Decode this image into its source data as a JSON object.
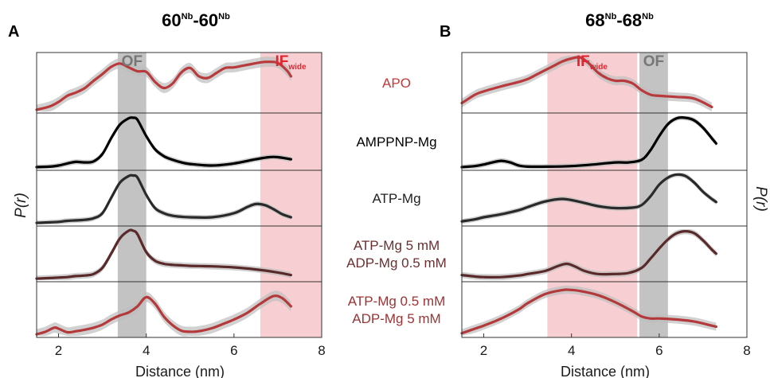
{
  "figure": {
    "ylabel_left": "P(r)",
    "ylabel_right": "P(r)",
    "row_labels": [
      {
        "lines": [
          "APO"
        ],
        "color": "#c0393b"
      },
      {
        "lines": [
          "AMPPNP-Mg"
        ],
        "color": "#000000"
      },
      {
        "lines": [
          "ATP-Mg"
        ],
        "color": "#222222"
      },
      {
        "lines": [
          "ATP-Mg 5 mM",
          "ADP-Mg 0.5 mM"
        ],
        "color": "#6b2f2f"
      },
      {
        "lines": [
          "ATP-Mg 0.5 mM",
          "ADP-Mg 5 mM"
        ],
        "color": "#9c3335"
      }
    ]
  },
  "chart_data": [
    {
      "panel": "A",
      "title_base1": "60",
      "title_sup1": "Nb",
      "title_sep": "-",
      "title_base2": "60",
      "title_sup2": "Nb",
      "type": "line",
      "xlabel": "Distance (nm)",
      "xlim": [
        1.5,
        8
      ],
      "xticks": [
        2,
        4,
        6,
        8
      ],
      "grid": false,
      "regions": [
        {
          "label": "OF",
          "sub": "",
          "x": [
            3.35,
            4.0
          ],
          "color": "#b9b9b9",
          "text_color": "#777777"
        },
        {
          "label": "IF",
          "sub": "wide",
          "x": [
            6.6,
            8.0
          ],
          "color": "#f6c7ca",
          "text_color": "#e0262f"
        }
      ],
      "series": [
        {
          "row": 0,
          "color": "#b83a3c",
          "band": 0.09,
          "x": [
            1.5,
            1.8,
            2.0,
            2.2,
            2.4,
            2.6,
            2.8,
            3.0,
            3.2,
            3.4,
            3.6,
            3.8,
            4.0,
            4.2,
            4.4,
            4.6,
            4.8,
            5.0,
            5.2,
            5.4,
            5.6,
            5.8,
            6.0,
            6.2,
            6.4,
            6.6,
            6.8,
            7.0,
            7.2,
            7.3
          ],
          "y": [
            0.03,
            0.09,
            0.17,
            0.28,
            0.34,
            0.42,
            0.55,
            0.67,
            0.8,
            0.86,
            0.79,
            0.72,
            0.71,
            0.53,
            0.42,
            0.5,
            0.7,
            0.78,
            0.63,
            0.6,
            0.69,
            0.78,
            0.79,
            0.82,
            0.85,
            0.88,
            0.89,
            0.87,
            0.74,
            0.63
          ]
        },
        {
          "row": 1,
          "color": "#000000",
          "band": 0.05,
          "x": [
            1.5,
            1.8,
            2.0,
            2.2,
            2.4,
            2.6,
            2.8,
            3.0,
            3.2,
            3.4,
            3.6,
            3.7,
            3.8,
            4.0,
            4.2,
            4.4,
            4.6,
            4.8,
            5.0,
            5.5,
            6.0,
            6.5,
            6.8,
            7.0,
            7.3
          ],
          "y": [
            0.03,
            0.04,
            0.06,
            0.1,
            0.13,
            0.12,
            0.14,
            0.28,
            0.58,
            0.84,
            0.96,
            0.97,
            0.93,
            0.62,
            0.37,
            0.24,
            0.17,
            0.12,
            0.09,
            0.06,
            0.1,
            0.18,
            0.22,
            0.22,
            0.18
          ]
        },
        {
          "row": 2,
          "color": "#2a2a2a",
          "band": 0.05,
          "x": [
            1.5,
            1.8,
            2.0,
            2.2,
            2.4,
            2.6,
            2.8,
            3.0,
            3.2,
            3.4,
            3.6,
            3.7,
            3.8,
            4.0,
            4.2,
            4.4,
            4.6,
            4.8,
            5.0,
            5.5,
            6.0,
            6.3,
            6.5,
            6.7,
            6.9,
            7.1,
            7.3
          ],
          "y": [
            0.03,
            0.04,
            0.05,
            0.07,
            0.08,
            0.09,
            0.12,
            0.22,
            0.52,
            0.82,
            0.95,
            0.96,
            0.92,
            0.58,
            0.32,
            0.22,
            0.17,
            0.15,
            0.14,
            0.14,
            0.22,
            0.34,
            0.4,
            0.38,
            0.3,
            0.2,
            0.14
          ]
        },
        {
          "row": 3,
          "color": "#5a2a2a",
          "band": 0.06,
          "x": [
            1.5,
            1.8,
            2.0,
            2.2,
            2.4,
            2.6,
            2.8,
            3.0,
            3.2,
            3.4,
            3.6,
            3.7,
            3.8,
            4.0,
            4.2,
            4.4,
            4.6,
            4.8,
            5.0,
            5.5,
            6.0,
            6.5,
            7.0,
            7.3
          ],
          "y": [
            0.03,
            0.04,
            0.05,
            0.06,
            0.08,
            0.09,
            0.12,
            0.24,
            0.52,
            0.82,
            0.97,
            0.97,
            0.9,
            0.55,
            0.38,
            0.32,
            0.3,
            0.29,
            0.28,
            0.27,
            0.25,
            0.21,
            0.15,
            0.1
          ]
        },
        {
          "row": 4,
          "color": "#b3393b",
          "band": 0.1,
          "x": [
            1.5,
            1.7,
            1.9,
            2.0,
            2.2,
            2.4,
            2.6,
            2.8,
            3.0,
            3.2,
            3.4,
            3.6,
            3.8,
            4.0,
            4.2,
            4.4,
            4.6,
            4.8,
            5.0,
            5.2,
            5.5,
            5.8,
            6.0,
            6.3,
            6.6,
            6.9,
            7.1,
            7.3
          ],
          "y": [
            0.03,
            0.08,
            0.16,
            0.14,
            0.07,
            0.09,
            0.12,
            0.16,
            0.22,
            0.32,
            0.4,
            0.46,
            0.58,
            0.76,
            0.63,
            0.38,
            0.21,
            0.1,
            0.08,
            0.09,
            0.15,
            0.25,
            0.32,
            0.45,
            0.63,
            0.78,
            0.74,
            0.58
          ]
        }
      ]
    },
    {
      "panel": "B",
      "title_base1": "68",
      "title_sup1": "Nb",
      "title_sep": "-",
      "title_base2": "68",
      "title_sup2": "Nb",
      "type": "line",
      "xlabel": "Distance (nm)",
      "xlim": [
        1.5,
        8
      ],
      "xticks": [
        2,
        4,
        6,
        8
      ],
      "grid": false,
      "regions": [
        {
          "label": "IF",
          "sub": "wide",
          "x": [
            3.45,
            5.5
          ],
          "color": "#f6c7ca",
          "text_color": "#e0262f"
        },
        {
          "label": "OF",
          "sub": "",
          "x": [
            5.55,
            6.2
          ],
          "color": "#b9b9b9",
          "text_color": "#777777"
        }
      ],
      "series": [
        {
          "row": 0,
          "color": "#b83a3c",
          "band": 0.08,
          "x": [
            1.5,
            1.8,
            2.0,
            2.4,
            2.8,
            3.0,
            3.2,
            3.4,
            3.6,
            3.8,
            4.0,
            4.2,
            4.4,
            4.6,
            4.8,
            5.0,
            5.2,
            5.4,
            5.6,
            5.8,
            6.0,
            6.4,
            6.8,
            7.2
          ],
          "y": [
            0.15,
            0.3,
            0.36,
            0.45,
            0.53,
            0.58,
            0.66,
            0.74,
            0.82,
            0.9,
            0.95,
            0.97,
            0.86,
            0.7,
            0.6,
            0.55,
            0.55,
            0.5,
            0.38,
            0.3,
            0.28,
            0.26,
            0.23,
            0.08
          ]
        },
        {
          "row": 1,
          "color": "#000000",
          "band": 0.05,
          "x": [
            1.5,
            1.8,
            2.0,
            2.2,
            2.4,
            2.6,
            2.8,
            3.0,
            3.5,
            4.0,
            4.5,
            5.0,
            5.3,
            5.6,
            5.8,
            6.0,
            6.2,
            6.4,
            6.6,
            6.8,
            7.0,
            7.2,
            7.3
          ],
          "y": [
            0.03,
            0.05,
            0.08,
            0.12,
            0.15,
            0.12,
            0.06,
            0.04,
            0.04,
            0.05,
            0.08,
            0.12,
            0.12,
            0.17,
            0.35,
            0.62,
            0.85,
            0.96,
            0.97,
            0.92,
            0.78,
            0.58,
            0.48
          ]
        },
        {
          "row": 2,
          "color": "#2a2a2a",
          "band": 0.05,
          "x": [
            1.5,
            1.8,
            2.0,
            2.4,
            2.8,
            3.0,
            3.4,
            3.8,
            4.2,
            4.6,
            5.0,
            5.4,
            5.6,
            5.8,
            6.0,
            6.2,
            6.4,
            6.6,
            6.8,
            7.0,
            7.2,
            7.3
          ],
          "y": [
            0.06,
            0.1,
            0.14,
            0.2,
            0.28,
            0.34,
            0.45,
            0.5,
            0.44,
            0.36,
            0.32,
            0.33,
            0.38,
            0.55,
            0.78,
            0.92,
            0.98,
            0.95,
            0.82,
            0.64,
            0.5,
            0.44
          ]
        },
        {
          "row": 3,
          "color": "#5a2a2a",
          "band": 0.06,
          "x": [
            1.5,
            1.8,
            2.0,
            2.4,
            2.8,
            3.0,
            3.4,
            3.7,
            3.9,
            4.1,
            4.3,
            4.6,
            5.0,
            5.3,
            5.6,
            5.8,
            6.0,
            6.2,
            6.4,
            6.6,
            6.8,
            7.0,
            7.2,
            7.3
          ],
          "y": [
            0.1,
            0.07,
            0.06,
            0.06,
            0.09,
            0.12,
            0.18,
            0.28,
            0.32,
            0.26,
            0.18,
            0.12,
            0.12,
            0.14,
            0.24,
            0.42,
            0.62,
            0.8,
            0.92,
            0.96,
            0.92,
            0.78,
            0.6,
            0.52
          ]
        },
        {
          "row": 4,
          "color": "#b3393b",
          "band": 0.08,
          "x": [
            1.5,
            1.8,
            2.0,
            2.4,
            2.8,
            3.0,
            3.4,
            3.8,
            4.0,
            4.2,
            4.6,
            5.0,
            5.4,
            5.6,
            5.8,
            6.0,
            6.4,
            6.8,
            7.2,
            7.3
          ],
          "y": [
            0.05,
            0.14,
            0.2,
            0.34,
            0.52,
            0.64,
            0.82,
            0.9,
            0.9,
            0.88,
            0.8,
            0.66,
            0.48,
            0.38,
            0.34,
            0.34,
            0.32,
            0.28,
            0.2,
            0.18
          ]
        }
      ]
    }
  ]
}
